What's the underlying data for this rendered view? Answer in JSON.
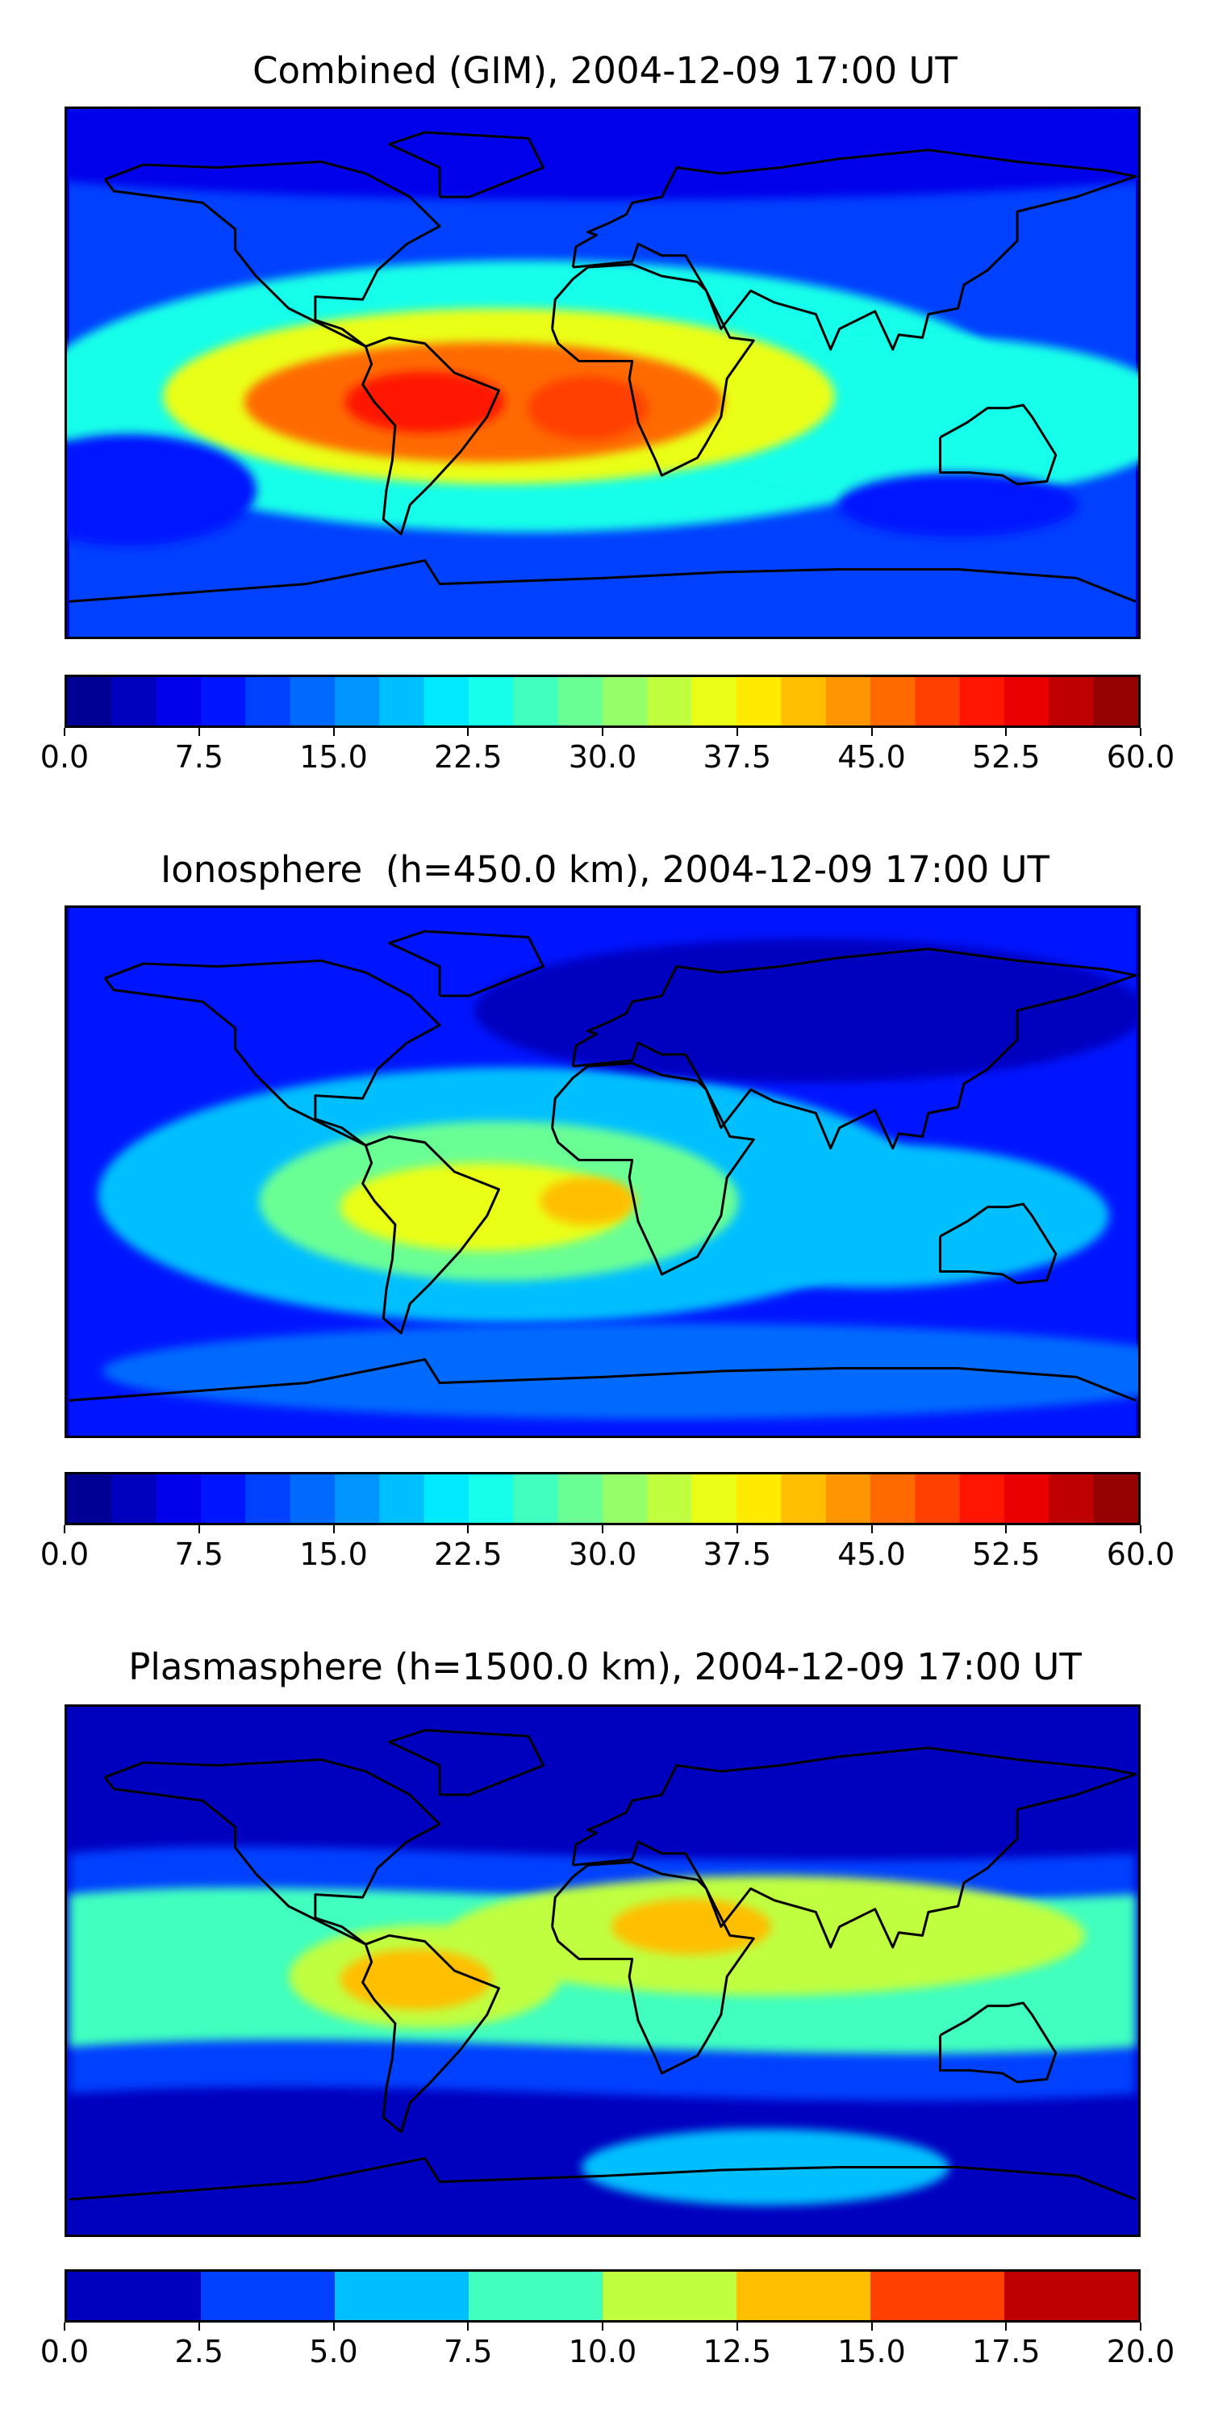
{
  "chart_data": [
    {
      "type": "heatmap",
      "title": "Combined (GIM), 2004-12-09 17:00 UT",
      "colorbar": {
        "min": 0.0,
        "max": 60.0,
        "levels": 24,
        "tick_labels": [
          "0.0",
          "7.5",
          "15.0",
          "22.5",
          "30.0",
          "37.5",
          "45.0",
          "52.5",
          "60.0"
        ]
      },
      "features": [
        {
          "region": "background",
          "value": 12
        },
        {
          "region": "equatorial band",
          "value": 24
        },
        {
          "region": "south atlantic anomaly",
          "value": 36
        },
        {
          "region": "south america crest",
          "value": 46
        },
        {
          "region": "south america core",
          "value": 52
        },
        {
          "region": "africa west crest",
          "value": 49
        },
        {
          "region": "southern pacific low",
          "value": 8
        },
        {
          "region": "northern high latitudes",
          "value": 6
        }
      ]
    },
    {
      "type": "heatmap",
      "title": "Ionosphere  (h=450.0 km), 2004-12-09 17:00 UT",
      "colorbar": {
        "min": 0.0,
        "max": 60.0,
        "levels": 24,
        "tick_labels": [
          "0.0",
          "7.5",
          "15.0",
          "22.5",
          "30.0",
          "37.5",
          "45.0",
          "52.5",
          "60.0"
        ]
      },
      "features": [
        {
          "region": "background",
          "value": 8
        },
        {
          "region": "equatorial band",
          "value": 18
        },
        {
          "region": "south atlantic anomaly",
          "value": 28
        },
        {
          "region": "south america crest",
          "value": 36
        },
        {
          "region": "africa west crest",
          "value": 41
        },
        {
          "region": "northern asia low",
          "value": 3
        },
        {
          "region": "southern high latitudes",
          "value": 14
        }
      ]
    },
    {
      "type": "heatmap",
      "title": "Plasmasphere (h=1500.0 km), 2004-12-09 17:00 UT",
      "colorbar": {
        "min": 0.0,
        "max": 20.0,
        "levels": 8,
        "tick_labels": [
          "0.0",
          "2.5",
          "5.0",
          "7.5",
          "10.0",
          "12.5",
          "15.0",
          "17.5",
          "20.0"
        ]
      },
      "features": [
        {
          "region": "polar background",
          "value": 1.5
        },
        {
          "region": "mid-latitude band",
          "value": 4
        },
        {
          "region": "equatorial band",
          "value": 8
        },
        {
          "region": "tropical enhancement",
          "value": 11
        },
        {
          "region": "south america peak",
          "value": 13.5
        },
        {
          "region": "east africa peak",
          "value": 13.5
        },
        {
          "region": "antarctic patch",
          "value": 6
        }
      ]
    }
  ]
}
